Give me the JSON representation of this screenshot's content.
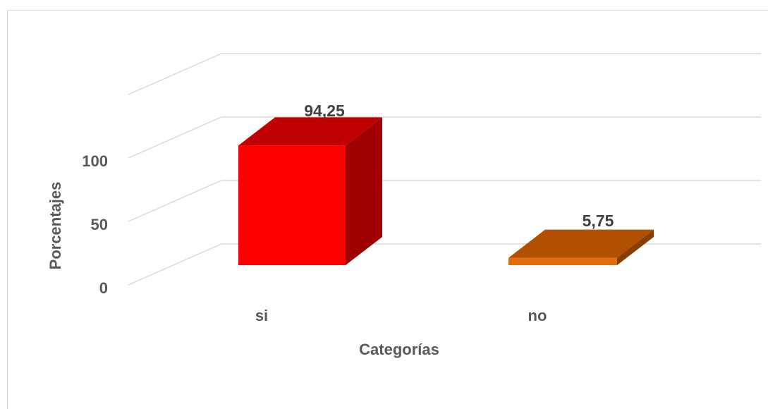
{
  "chart_data": {
    "type": "bar",
    "title": "",
    "xlabel": "Categorías",
    "ylabel": "Porcentajes",
    "categories": [
      "si",
      "no"
    ],
    "values": [
      94.25,
      5.75
    ],
    "data_labels": [
      "94,25",
      "5,75"
    ],
    "yticks": [
      "0",
      "50",
      "100"
    ],
    "ylim": [
      0,
      100
    ],
    "grid": true,
    "three_d": true,
    "colors": {
      "si": {
        "front": "#ff0000",
        "top": "#c00000",
        "side": "#a00000"
      },
      "no": {
        "front": "#e36c0a",
        "top": "#b05000",
        "side": "#8a3d00"
      },
      "grid": "#d9d9d9"
    }
  }
}
